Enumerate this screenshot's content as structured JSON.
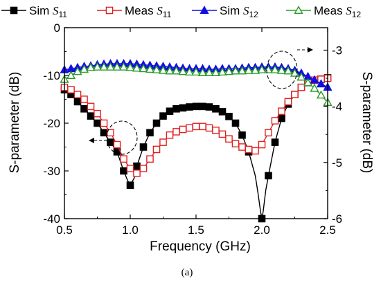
{
  "chart_data": {
    "type": "line",
    "xlabel": "Frequency (GHz)",
    "ylabel_left": "S-parameter (dB)",
    "ylabel_right": "S-parameter (dB)",
    "caption": "(a)",
    "x_axis": {
      "range": [
        0.5,
        2.5
      ],
      "ticks": [
        "0.5",
        "1.0",
        "1.5",
        "2.0",
        "2.5"
      ]
    },
    "y_left": {
      "range": [
        -40,
        0
      ],
      "ticks": [
        "0",
        "-10",
        "-20",
        "-30",
        "-40"
      ]
    },
    "y_right": {
      "range": [
        -6,
        -2.6
      ],
      "ticks": [
        "-3",
        "-4",
        "-5",
        "-6"
      ]
    },
    "legend": [
      {
        "sym": "Sim ",
        "param": "S",
        "sub": "11"
      },
      {
        "sym": "Meas ",
        "param": "S",
        "sub": "11"
      },
      {
        "sym": "Sim ",
        "param": "S",
        "sub": "12"
      },
      {
        "sym": "Meas ",
        "param": "S",
        "sub": "12"
      }
    ],
    "series": [
      {
        "axis": "left",
        "color": "#000000",
        "marker": "filled-square",
        "x": [
          0.5,
          0.55,
          0.6,
          0.65,
          0.7,
          0.75,
          0.8,
          0.85,
          0.9,
          0.95,
          0.98,
          1.0,
          1.03,
          1.05,
          1.1,
          1.15,
          1.2,
          1.25,
          1.3,
          1.35,
          1.4,
          1.45,
          1.5,
          1.55,
          1.6,
          1.65,
          1.7,
          1.75,
          1.8,
          1.85,
          1.9,
          1.95,
          1.97,
          1.99,
          2.0,
          2.01,
          2.03,
          2.05,
          2.1,
          2.15,
          2.2,
          2.25,
          2.3,
          2.35,
          2.4,
          2.45,
          2.5
        ],
        "y": [
          -13,
          -14,
          -15.5,
          -17,
          -18.5,
          -20,
          -22,
          -24,
          -26,
          -30,
          -32,
          -33,
          -31.5,
          -29,
          -25,
          -22,
          -20,
          -18.5,
          -17.5,
          -17,
          -16.8,
          -16.6,
          -16.5,
          -16.5,
          -16.6,
          -17,
          -17.6,
          -18.6,
          -20,
          -22.5,
          -26,
          -31,
          -34.5,
          -38.5,
          -40,
          -38.5,
          -34,
          -31,
          -24,
          -19,
          -16,
          -14,
          -12.5,
          -11.5,
          -11,
          -10.8,
          -10.5
        ],
        "marker_x": [
          0.5,
          0.55,
          0.6,
          0.65,
          0.7,
          0.75,
          0.8,
          0.85,
          0.9,
          0.95,
          1.0,
          1.05,
          1.1,
          1.15,
          1.2,
          1.25,
          1.3,
          1.35,
          1.4,
          1.45,
          1.5,
          1.55,
          1.6,
          1.65,
          1.7,
          1.75,
          1.8,
          1.85,
          1.9,
          2.0,
          2.05,
          2.1,
          2.15,
          2.2,
          2.25,
          2.3,
          2.35,
          2.4,
          2.45,
          2.5
        ]
      },
      {
        "axis": "left",
        "color": "#e02020",
        "marker": "open-square",
        "x": [
          0.5,
          0.55,
          0.6,
          0.65,
          0.7,
          0.75,
          0.8,
          0.85,
          0.9,
          0.95,
          1.0,
          1.05,
          1.1,
          1.15,
          1.2,
          1.25,
          1.3,
          1.35,
          1.4,
          1.45,
          1.5,
          1.55,
          1.6,
          1.65,
          1.7,
          1.75,
          1.8,
          1.85,
          1.9,
          1.95,
          2.0,
          2.05,
          2.1,
          2.15,
          2.2,
          2.25,
          2.3,
          2.35,
          2.4,
          2.45,
          2.5
        ],
        "y": [
          -12.5,
          -13,
          -14,
          -15,
          -16.5,
          -18,
          -20,
          -22,
          -24.5,
          -27.5,
          -29.5,
          -30.5,
          -29.5,
          -27.5,
          -25.5,
          -24,
          -22.5,
          -21.8,
          -21.3,
          -21,
          -20.7,
          -20.7,
          -21,
          -21.5,
          -22.3,
          -23.3,
          -24.3,
          -25,
          -25.5,
          -25.8,
          -24.5,
          -22,
          -19.5,
          -17.5,
          -15.5,
          -14,
          -12.5,
          -11.5,
          -11,
          -10.8,
          -10.6
        ]
      },
      {
        "axis": "right",
        "color": "#1010e0",
        "marker": "filled-triangle",
        "x": [
          0.5,
          0.55,
          0.6,
          0.65,
          0.7,
          0.75,
          0.8,
          0.85,
          0.9,
          0.95,
          1.0,
          1.05,
          1.1,
          1.15,
          1.2,
          1.25,
          1.3,
          1.35,
          1.4,
          1.45,
          1.5,
          1.55,
          1.6,
          1.65,
          1.7,
          1.75,
          1.8,
          1.85,
          1.9,
          1.95,
          2.0,
          2.05,
          2.1,
          2.15,
          2.2,
          2.25,
          2.3,
          2.35,
          2.4,
          2.45,
          2.5
        ],
        "y": [
          -3.35,
          -3.33,
          -3.31,
          -3.29,
          -3.28,
          -3.26,
          -3.25,
          -3.24,
          -3.24,
          -3.24,
          -3.24,
          -3.25,
          -3.26,
          -3.27,
          -3.28,
          -3.29,
          -3.3,
          -3.31,
          -3.32,
          -3.33,
          -3.33,
          -3.33,
          -3.34,
          -3.34,
          -3.33,
          -3.33,
          -3.33,
          -3.32,
          -3.31,
          -3.31,
          -3.3,
          -3.3,
          -3.3,
          -3.31,
          -3.33,
          -3.36,
          -3.41,
          -3.47,
          -3.53,
          -3.6,
          -3.66
        ]
      },
      {
        "axis": "right",
        "color": "#2a9a2a",
        "marker": "open-triangle",
        "x": [
          0.5,
          0.55,
          0.6,
          0.65,
          0.7,
          0.75,
          0.8,
          0.85,
          0.9,
          0.95,
          1.0,
          1.05,
          1.1,
          1.15,
          1.2,
          1.25,
          1.3,
          1.35,
          1.4,
          1.45,
          1.5,
          1.55,
          1.6,
          1.65,
          1.7,
          1.75,
          1.8,
          1.85,
          1.9,
          1.95,
          2.0,
          2.05,
          2.1,
          2.15,
          2.2,
          2.25,
          2.3,
          2.35,
          2.4,
          2.45,
          2.5
        ],
        "y": [
          -3.52,
          -3.45,
          -3.38,
          -3.34,
          -3.31,
          -3.3,
          -3.3,
          -3.3,
          -3.3,
          -3.3,
          -3.31,
          -3.32,
          -3.33,
          -3.34,
          -3.35,
          -3.36,
          -3.37,
          -3.37,
          -3.38,
          -3.39,
          -3.39,
          -3.4,
          -3.4,
          -3.4,
          -3.39,
          -3.38,
          -3.37,
          -3.37,
          -3.36,
          -3.36,
          -3.35,
          -3.35,
          -3.35,
          -3.36,
          -3.37,
          -3.41,
          -3.48,
          -3.58,
          -3.68,
          -3.8,
          -3.93
        ]
      }
    ]
  }
}
